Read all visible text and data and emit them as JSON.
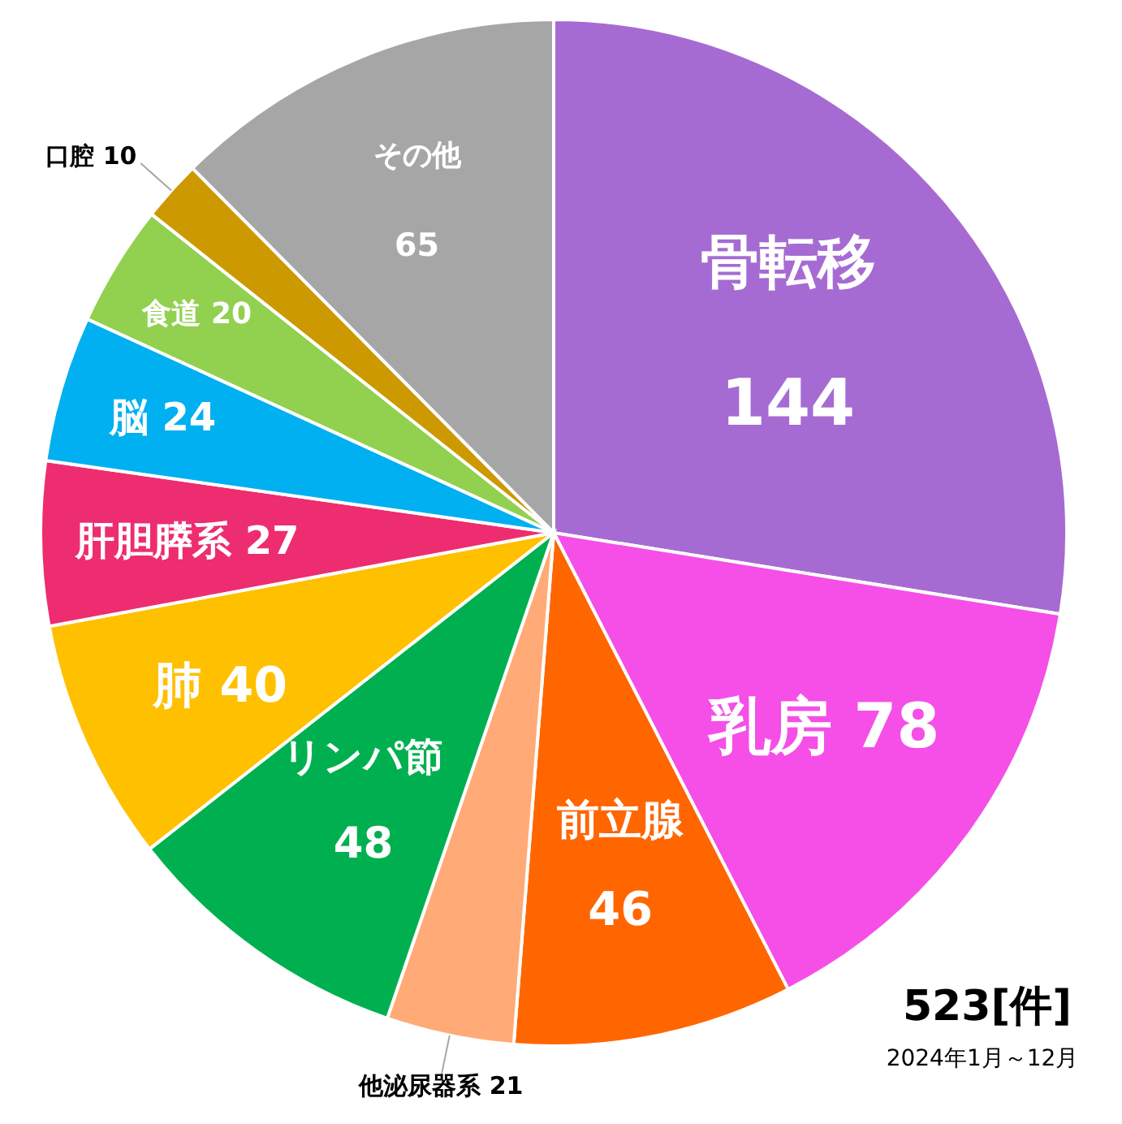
{
  "chart_data": {
    "type": "pie",
    "categories": [
      "骨転移",
      "乳房",
      "前立腺",
      "他泌尿器系",
      "リンパ節",
      "肺",
      "肝胆膵系",
      "脳",
      "食道",
      "口腔",
      "その他"
    ],
    "values": [
      144,
      78,
      46,
      21,
      48,
      40,
      27,
      24,
      20,
      10,
      65
    ],
    "colors": [
      "#a66bd3",
      "#f54fe8",
      "#ff6600",
      "#ffaa77",
      "#00b050",
      "#ffc000",
      "#ed2d70",
      "#00b0f0",
      "#92d050",
      "#cc9900",
      "#a6a6a6"
    ],
    "data_labels": true,
    "annotations": [
      "523[件]",
      "2024年1月～12月"
    ]
  }
}
